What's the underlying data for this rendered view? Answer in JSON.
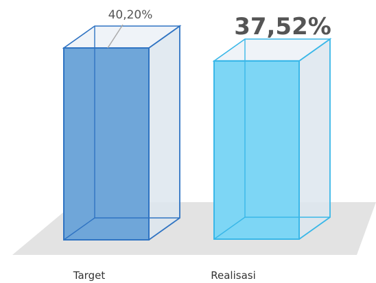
{
  "chart_data": {
    "type": "bar",
    "categories": [
      "Target",
      "Realisasi"
    ],
    "values": [
      40.2,
      37.52
    ],
    "value_labels": [
      "40,20%",
      "37,52%"
    ],
    "title": "",
    "xlabel": "",
    "ylabel": "",
    "colors": {
      "target_fill": "#6fa6d9",
      "target_stroke": "#2f73c2",
      "realisasi_fill": "#7dd6f5",
      "realisasi_stroke": "#39b7e8",
      "container_fill": "#dde6ef",
      "floor": "#e3e3e3"
    }
  }
}
